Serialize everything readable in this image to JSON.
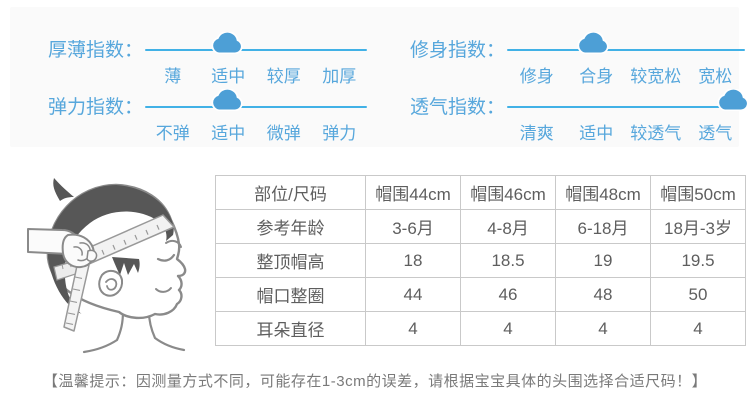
{
  "indexes": {
    "items": [
      {
        "label": "厚薄指数：",
        "options": [
          "薄",
          "适中",
          "较厚",
          "加厚"
        ],
        "selected": "适中",
        "cloud_percent": 37
      },
      {
        "label": "修身指数：",
        "options": [
          "修身",
          "合身",
          "较宽松",
          "宽松"
        ],
        "selected": "合身",
        "cloud_percent": 36
      },
      {
        "label": "弹力指数：",
        "options": [
          "不弹",
          "适中",
          "微弹",
          "弹力"
        ],
        "selected": "适中",
        "cloud_percent": 37
      },
      {
        "label": "透气指数：",
        "options": [
          "清爽",
          "适中",
          "较透气",
          "透气"
        ],
        "selected": "透气",
        "cloud_percent": 95
      }
    ]
  },
  "size_table": {
    "columns": [
      "部位/尺码",
      "帽围44cm",
      "帽围46cm",
      "帽围48cm",
      "帽围50cm"
    ],
    "rows": [
      {
        "label": "参考年龄",
        "values": [
          "3-6月",
          "4-8月",
          "6-18月",
          "18月-3岁"
        ]
      },
      {
        "label": "整顶帽高",
        "values": [
          "18",
          "18.5",
          "19",
          "19.5"
        ]
      },
      {
        "label": "帽口整圈",
        "values": [
          "44",
          "46",
          "48",
          "50"
        ]
      },
      {
        "label": "耳朵直径",
        "values": [
          "4",
          "4",
          "4",
          "4"
        ]
      }
    ]
  },
  "tip": {
    "text": "【温馨提示：因测量方式不同，可能存在1-3cm的误差，请根据宝宝具体的头围选择合适尺码！】"
  },
  "illustration": {
    "name": "baby-head-with-measuring-tape"
  },
  "colors": {
    "index_text": "#57a7dc",
    "index_line": "#41b1e6",
    "cloud": "#4d9fd6",
    "table_border": "#c9c9c9",
    "table_text": "#5e5e5e",
    "tip_text": "#7a7a7a",
    "panel_bg": "#fafafa"
  }
}
